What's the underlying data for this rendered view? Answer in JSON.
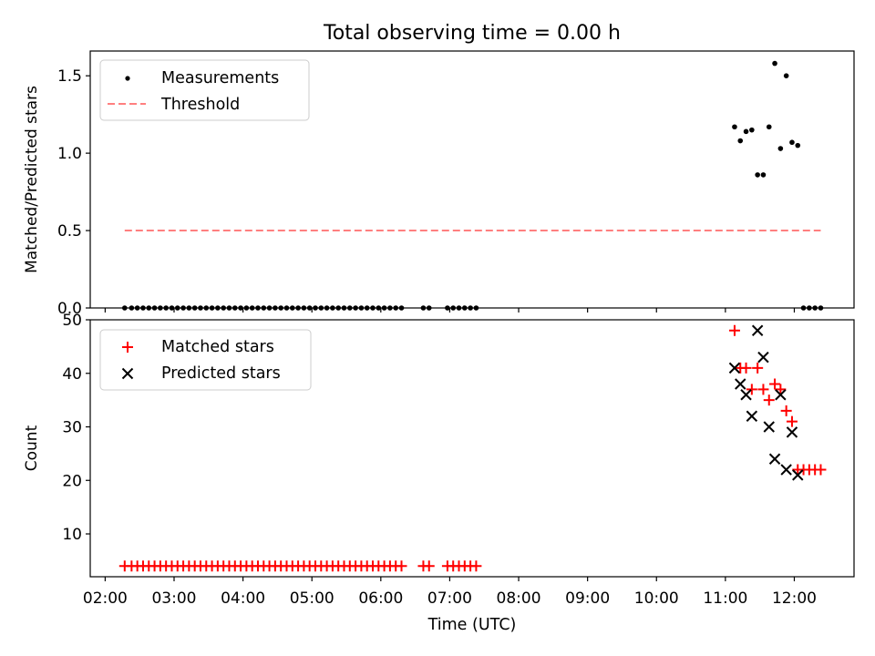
{
  "figure": {
    "title": "Total observing time = 0.00 h",
    "xlabel": "Time (UTC)",
    "x_ticks": [
      "02:00",
      "03:00",
      "04:00",
      "05:00",
      "06:00",
      "07:00",
      "08:00",
      "09:00",
      "10:00",
      "11:00",
      "12:00"
    ]
  },
  "chart_data": [
    {
      "type": "scatter",
      "panel": "top",
      "ylabel": "Matched/Predicted stars",
      "xlim": [
        "01:47",
        "12:52"
      ],
      "ylim": [
        0,
        1.66
      ],
      "y_ticks": [
        "0.0",
        "0.5",
        "1.0",
        "1.5"
      ],
      "legend": {
        "location": "upper left",
        "entries": [
          "Measurements",
          "Threshold"
        ]
      },
      "series": [
        {
          "name": "Measurements",
          "marker": "dot",
          "color": "#000000",
          "x": [
            "02:17",
            "02:23",
            "02:28",
            "02:33",
            "02:38",
            "02:43",
            "02:48",
            "02:53",
            "02:58",
            "03:03",
            "03:08",
            "03:13",
            "03:18",
            "03:23",
            "03:28",
            "03:33",
            "03:38",
            "03:43",
            "03:48",
            "03:53",
            "03:58",
            "04:03",
            "04:08",
            "04:13",
            "04:18",
            "04:23",
            "04:28",
            "04:33",
            "04:38",
            "04:43",
            "04:48",
            "04:53",
            "04:58",
            "05:03",
            "05:08",
            "05:13",
            "05:18",
            "05:23",
            "05:28",
            "05:33",
            "05:38",
            "05:43",
            "05:48",
            "05:53",
            "05:58",
            "06:03",
            "06:08",
            "06:13",
            "06:18",
            "06:37",
            "06:42",
            "06:58",
            "07:03",
            "07:08",
            "07:13",
            "07:18",
            "07:23",
            "11:08",
            "11:13",
            "11:18",
            "11:23",
            "11:28",
            "11:33",
            "11:38",
            "11:43",
            "11:48",
            "11:53",
            "11:58",
            "12:03",
            "12:08",
            "12:13",
            "12:18",
            "12:23"
          ],
          "y": [
            0,
            0,
            0,
            0,
            0,
            0,
            0,
            0,
            0,
            0,
            0,
            0,
            0,
            0,
            0,
            0,
            0,
            0,
            0,
            0,
            0,
            0,
            0,
            0,
            0,
            0,
            0,
            0,
            0,
            0,
            0,
            0,
            0,
            0,
            0,
            0,
            0,
            0,
            0,
            0,
            0,
            0,
            0,
            0,
            0,
            0,
            0,
            0,
            0,
            0,
            0,
            0,
            0,
            0,
            0,
            0,
            0,
            1.17,
            1.08,
            1.14,
            1.15,
            0.86,
            0.86,
            1.17,
            1.58,
            1.03,
            1.5,
            1.07,
            1.05,
            0,
            0,
            0,
            0
          ]
        },
        {
          "name": "Threshold",
          "style": "dashed",
          "color": "#ff7f7f",
          "x": [
            "02:17",
            "12:23"
          ],
          "y": [
            0.5,
            0.5
          ]
        }
      ]
    },
    {
      "type": "scatter",
      "panel": "bottom",
      "ylabel": "Count",
      "xlim": [
        "01:47",
        "12:52"
      ],
      "ylim": [
        2,
        50
      ],
      "y_ticks": [
        "10",
        "20",
        "30",
        "40",
        "50"
      ],
      "legend": {
        "location": "upper left",
        "entries": [
          "Matched stars",
          "Predicted stars"
        ]
      },
      "series": [
        {
          "name": "Matched stars",
          "marker": "plus",
          "color": "#ff0000",
          "x": [
            "02:17",
            "02:23",
            "02:28",
            "02:33",
            "02:38",
            "02:43",
            "02:48",
            "02:53",
            "02:58",
            "03:03",
            "03:08",
            "03:13",
            "03:18",
            "03:23",
            "03:28",
            "03:33",
            "03:38",
            "03:43",
            "03:48",
            "03:53",
            "03:58",
            "04:03",
            "04:08",
            "04:13",
            "04:18",
            "04:23",
            "04:28",
            "04:33",
            "04:38",
            "04:43",
            "04:48",
            "04:53",
            "04:58",
            "05:03",
            "05:08",
            "05:13",
            "05:18",
            "05:23",
            "05:28",
            "05:33",
            "05:38",
            "05:43",
            "05:48",
            "05:53",
            "05:58",
            "06:03",
            "06:08",
            "06:13",
            "06:18",
            "06:37",
            "06:42",
            "06:58",
            "07:03",
            "07:08",
            "07:13",
            "07:18",
            "07:23",
            "11:08",
            "11:13",
            "11:18",
            "11:23",
            "11:28",
            "11:33",
            "11:38",
            "11:43",
            "11:48",
            "11:53",
            "11:58",
            "12:03",
            "12:08",
            "12:13",
            "12:18",
            "12:23"
          ],
          "y": [
            4,
            4,
            4,
            4,
            4,
            4,
            4,
            4,
            4,
            4,
            4,
            4,
            4,
            4,
            4,
            4,
            4,
            4,
            4,
            4,
            4,
            4,
            4,
            4,
            4,
            4,
            4,
            4,
            4,
            4,
            4,
            4,
            4,
            4,
            4,
            4,
            4,
            4,
            4,
            4,
            4,
            4,
            4,
            4,
            4,
            4,
            4,
            4,
            4,
            4,
            4,
            4,
            4,
            4,
            4,
            4,
            4,
            48,
            41,
            41,
            37,
            41,
            37,
            35,
            38,
            37,
            33,
            31,
            22,
            22,
            22,
            22,
            22
          ]
        },
        {
          "name": "Predicted stars",
          "marker": "x",
          "color": "#000000",
          "x": [
            "11:08",
            "11:13",
            "11:18",
            "11:23",
            "11:28",
            "11:33",
            "11:38",
            "11:43",
            "11:48",
            "11:53",
            "11:58",
            "12:03"
          ],
          "y": [
            41,
            38,
            36,
            32,
            48,
            43,
            30,
            24,
            36,
            22,
            29,
            21
          ]
        }
      ]
    }
  ]
}
